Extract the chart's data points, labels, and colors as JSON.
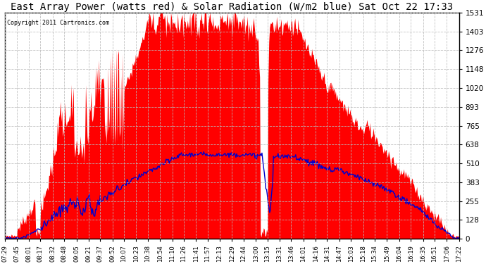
{
  "title": "East Array Power (watts red) & Solar Radiation (W/m2 blue) Sat Oct 22 17:33",
  "copyright_text": "Copyright 2011 Cartronics.com",
  "ymin": 0.0,
  "ymax": 1530.7,
  "yticks": [
    0.0,
    127.6,
    255.1,
    382.7,
    510.2,
    637.8,
    765.3,
    892.9,
    1020.4,
    1148.0,
    1275.6,
    1403.1,
    1530.7
  ],
  "background_color": "#ffffff",
  "plot_bg_color": "#ffffff",
  "grid_color": "#aaaaaa",
  "fill_color": "#ff0000",
  "line_color": "#0000cc",
  "title_fontsize": 10,
  "x_labels": [
    "07:29",
    "07:45",
    "08:01",
    "08:17",
    "08:32",
    "08:48",
    "09:05",
    "09:21",
    "09:37",
    "09:52",
    "10:07",
    "10:23",
    "10:38",
    "10:54",
    "11:10",
    "11:26",
    "11:41",
    "11:57",
    "12:13",
    "12:29",
    "12:44",
    "13:00",
    "13:15",
    "13:31",
    "13:46",
    "14:01",
    "14:16",
    "14:31",
    "14:47",
    "15:03",
    "15:18",
    "15:34",
    "15:49",
    "16:04",
    "16:19",
    "16:35",
    "16:51",
    "17:06",
    "17:22"
  ]
}
